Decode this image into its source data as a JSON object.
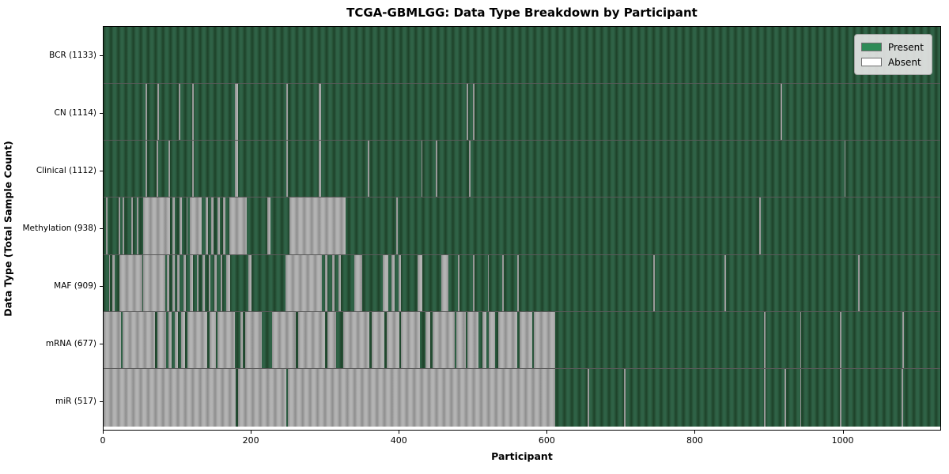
{
  "title": "TCGA-GBMLGG: Data Type Breakdown by Participant",
  "xlabel": "Participant",
  "ylabel": "Data Type (Total Sample Count)",
  "legend": {
    "present_label": "Present",
    "absent_label": "Absent"
  },
  "colors": {
    "present_fill": "#2e8b57",
    "present_stripe_light": "#2f6246",
    "present_stripe_dark": "#1e4229",
    "absent_fill": "#ffffff",
    "absent_stripe_light": "#b3b3b3",
    "absent_stripe_dark": "#8e8e8e",
    "legend_bg": "#e5e5e5"
  },
  "chart_data": {
    "type": "heatmap",
    "title": "TCGA-GBMLGG: Data Type Breakdown by Participant",
    "xlabel": "Participant",
    "ylabel": "Data Type (Total Sample Count)",
    "x_range": [
      0,
      1133
    ],
    "x_ticks": [
      0,
      200,
      400,
      600,
      800,
      1000
    ],
    "grid": false,
    "legend_position": "upper right",
    "legend_entries": [
      "Present",
      "Absent"
    ],
    "value_encoding": {
      "present": "green",
      "absent": "white/gray"
    },
    "rows": [
      {
        "name": "BCR",
        "label": "BCR (1133)",
        "present_count": 1133,
        "absent_segments": []
      },
      {
        "name": "CN",
        "label": "CN (1114)",
        "present_count": 1114,
        "absent_segments": [
          [
            57,
            59
          ],
          [
            73,
            75
          ],
          [
            102,
            104
          ],
          [
            120,
            122
          ],
          [
            178,
            182
          ],
          [
            247,
            249
          ],
          [
            291,
            295
          ],
          [
            492,
            494
          ],
          [
            500,
            502
          ],
          [
            917,
            919
          ]
        ]
      },
      {
        "name": "Clinical",
        "label": "Clinical (1112)",
        "present_count": 1112,
        "absent_segments": [
          [
            57,
            59
          ],
          [
            72,
            74
          ],
          [
            88,
            90
          ],
          [
            120,
            122
          ],
          [
            178,
            182
          ],
          [
            247,
            249
          ],
          [
            291,
            295
          ],
          [
            358,
            360
          ],
          [
            430,
            432
          ],
          [
            450,
            452
          ],
          [
            495,
            497
          ],
          [
            1003,
            1005
          ]
        ]
      },
      {
        "name": "Methylation",
        "label": "Methylation (938)",
        "present_count": 938,
        "absent_segments": [
          [
            3,
            5
          ],
          [
            20,
            22
          ],
          [
            26,
            28
          ],
          [
            38,
            40
          ],
          [
            45,
            47
          ],
          [
            54,
            90
          ],
          [
            93,
            96
          ],
          [
            103,
            106
          ],
          [
            112,
            114
          ],
          [
            117,
            133
          ],
          [
            138,
            141
          ],
          [
            146,
            149
          ],
          [
            154,
            157
          ],
          [
            162,
            165
          ],
          [
            170,
            194
          ],
          [
            222,
            226
          ],
          [
            252,
            328
          ],
          [
            396,
            398
          ],
          [
            888,
            890
          ]
        ]
      },
      {
        "name": "MAF",
        "label": "MAF (909)",
        "present_count": 909,
        "absent_segments": [
          [
            7,
            9
          ],
          [
            12,
            15
          ],
          [
            21,
            52
          ],
          [
            54,
            84
          ],
          [
            86,
            89
          ],
          [
            93,
            96
          ],
          [
            100,
            103
          ],
          [
            108,
            111
          ],
          [
            117,
            121
          ],
          [
            126,
            129
          ],
          [
            134,
            137
          ],
          [
            142,
            145
          ],
          [
            150,
            153
          ],
          [
            158,
            161
          ],
          [
            166,
            171
          ],
          [
            196,
            200
          ],
          [
            246,
            296
          ],
          [
            300,
            303
          ],
          [
            310,
            313
          ],
          [
            318,
            321
          ],
          [
            339,
            350
          ],
          [
            378,
            385
          ],
          [
            390,
            394
          ],
          [
            399,
            403
          ],
          [
            425,
            432
          ],
          [
            457,
            467
          ],
          [
            480,
            482
          ],
          [
            500,
            502
          ],
          [
            520,
            522
          ],
          [
            540,
            542
          ],
          [
            560,
            562
          ],
          [
            744,
            746
          ],
          [
            841,
            843
          ],
          [
            1022,
            1024
          ]
        ]
      },
      {
        "name": "mRNA",
        "label": "mRNA (677)",
        "present_count": 677,
        "absent_segments": [
          [
            0,
            24
          ],
          [
            26,
            70
          ],
          [
            73,
            85
          ],
          [
            88,
            92
          ],
          [
            96,
            101
          ],
          [
            105,
            110
          ],
          [
            114,
            140
          ],
          [
            143,
            152
          ],
          [
            154,
            178
          ],
          [
            185,
            188
          ],
          [
            192,
            214
          ],
          [
            228,
            260
          ],
          [
            263,
            300
          ],
          [
            303,
            315
          ],
          [
            325,
            360
          ],
          [
            363,
            380
          ],
          [
            383,
            400
          ],
          [
            403,
            428
          ],
          [
            436,
            442
          ],
          [
            446,
            475
          ],
          [
            478,
            490
          ],
          [
            493,
            508
          ],
          [
            513,
            518
          ],
          [
            522,
            530
          ],
          [
            534,
            560
          ],
          [
            563,
            580
          ],
          [
            583,
            612
          ],
          [
            894,
            896
          ],
          [
            943,
            945
          ],
          [
            997,
            999
          ],
          [
            1082,
            1084
          ]
        ]
      },
      {
        "name": "miR",
        "label": "miR (517)",
        "present_count": 517,
        "absent_segments": [
          [
            0,
            179
          ],
          [
            182,
            247
          ],
          [
            250,
            612
          ],
          [
            655,
            657
          ],
          [
            705,
            707
          ],
          [
            894,
            896
          ],
          [
            922,
            924
          ],
          [
            943,
            945
          ],
          [
            997,
            999
          ],
          [
            1081,
            1083
          ]
        ]
      }
    ]
  }
}
